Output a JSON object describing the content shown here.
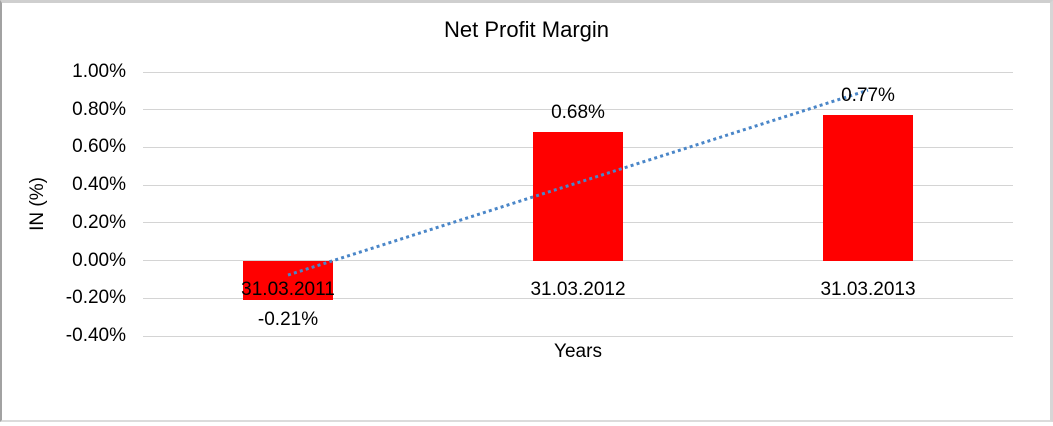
{
  "chart_data": {
    "type": "bar",
    "title": "Net Profit Margin",
    "xlabel": "Years",
    "ylabel": "IN (%)",
    "categories": [
      "31.03.2011",
      "31.03.2012",
      "31.03.2013"
    ],
    "values": [
      -0.21,
      0.68,
      0.77
    ],
    "data_labels": [
      "-0.21%",
      "0.68%",
      "0.77%"
    ],
    "ylim": [
      -0.4,
      1.0
    ],
    "ytick_step": 0.2,
    "ytick_labels": [
      "1.00%",
      "0.80%",
      "0.60%",
      "0.40%",
      "0.20%",
      "0.00%",
      "-0.20%",
      "-0.40%"
    ],
    "grid": true,
    "legend_position": "none",
    "bar_color": "#ff0000",
    "gridline_color": "#d4d4d4",
    "text_color": "#000000",
    "trendline": {
      "type": "linear",
      "style": "dotted",
      "color": "#4a86c8",
      "spans_categories": [
        0,
        2
      ]
    }
  }
}
